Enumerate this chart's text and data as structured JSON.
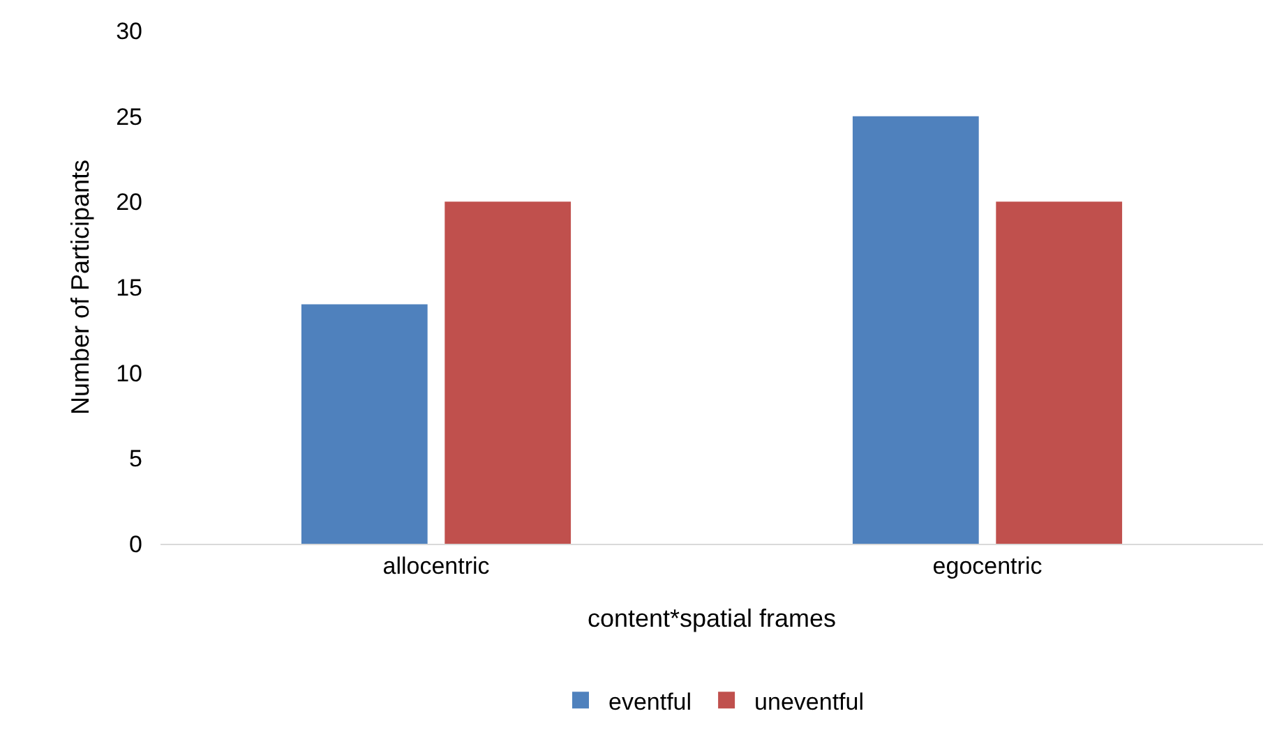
{
  "chart_data": {
    "type": "bar",
    "xlabel": "content*spatial frames",
    "ylabel": "Number of Participants",
    "categories": [
      "allocentric",
      "egocentric"
    ],
    "series": [
      {
        "name": "eventful",
        "color": "#4f81bd",
        "values": [
          14,
          25
        ]
      },
      {
        "name": "uneventful",
        "color": "#c0504d",
        "values": [
          20,
          20
        ]
      }
    ],
    "ylim": [
      0,
      30
    ],
    "yticks": [
      0,
      5,
      10,
      15,
      20,
      25,
      30
    ],
    "grid": false,
    "legend": "bottom"
  }
}
